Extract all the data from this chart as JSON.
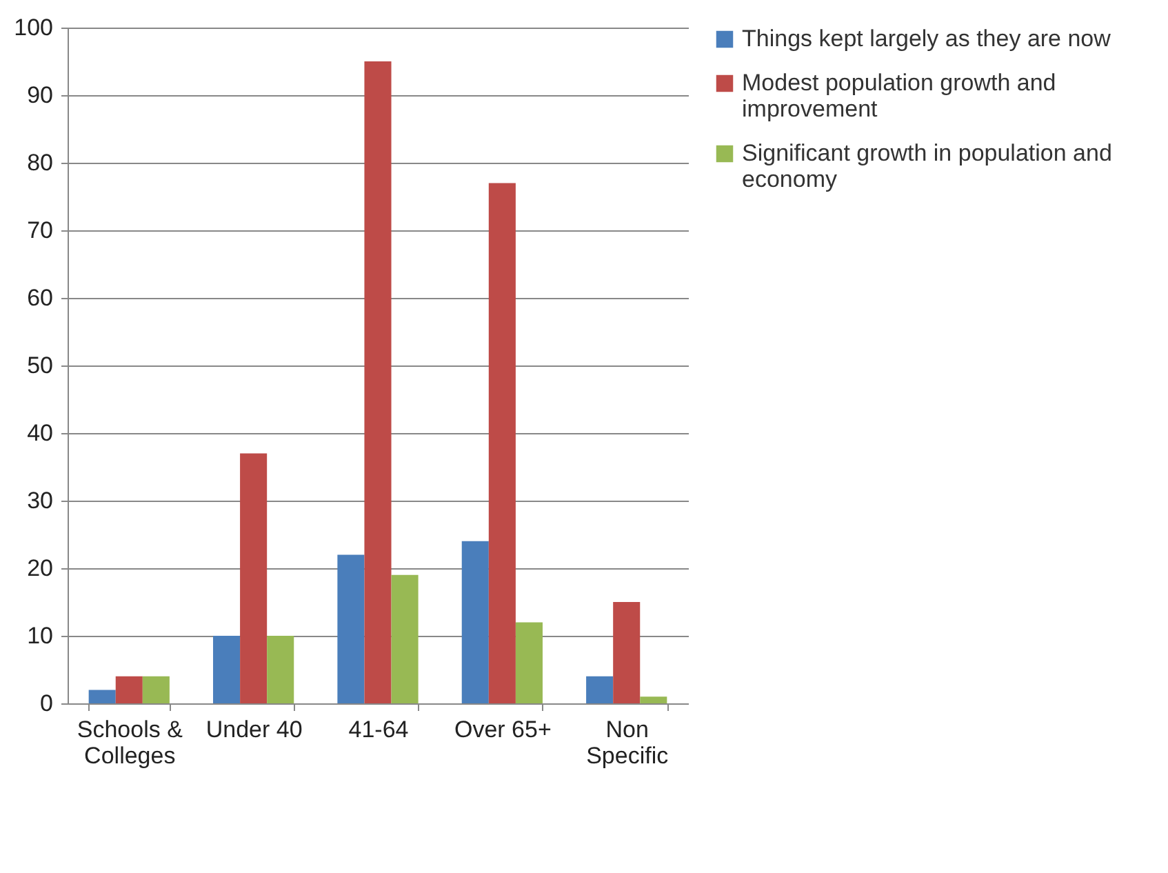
{
  "chart_data": {
    "type": "bar",
    "categories": [
      "Schools & Colleges",
      "Under 40",
      "41-64",
      "Over 65+",
      "Non Specific"
    ],
    "series": [
      {
        "name": "Things kept largely as they are now",
        "color": "#4a7ebb",
        "values": [
          2,
          10,
          22,
          24,
          4
        ]
      },
      {
        "name": "Modest population growth and improvement",
        "color": "#be4b48",
        "values": [
          4,
          37,
          95,
          77,
          15
        ]
      },
      {
        "name": "Significant growth in population and economy",
        "color": "#98b954",
        "values": [
          4,
          10,
          19,
          12,
          1
        ]
      }
    ],
    "ylim": [
      0,
      100
    ],
    "yticks": [
      0,
      10,
      20,
      30,
      40,
      50,
      60,
      70,
      80,
      90,
      100
    ],
    "grid": "y",
    "legend": "right"
  }
}
